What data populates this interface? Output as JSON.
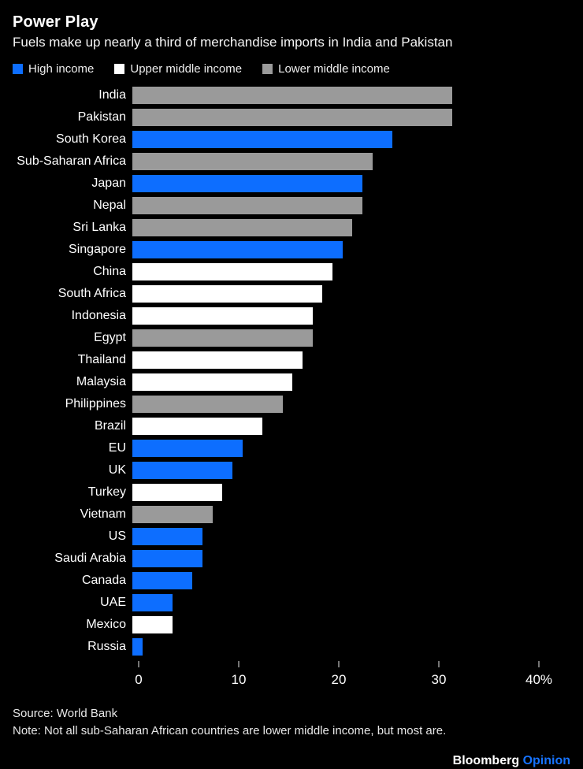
{
  "header": {
    "title": "Power Play",
    "subtitle": "Fuels make up nearly a third of merchandise imports in India and Pakistan"
  },
  "legend": [
    {
      "label": "High income",
      "color": "#0d6eff"
    },
    {
      "label": "Upper middle income",
      "color": "#ffffff"
    },
    {
      "label": "Lower middle income",
      "color": "#9a9a9a"
    }
  ],
  "colors": {
    "background": "#000000",
    "high_income": "#0d6eff",
    "upper_middle_income": "#ffffff",
    "lower_middle_income": "#9a9a9a",
    "brand_accent": "#1673ff"
  },
  "chart_data": {
    "type": "bar",
    "orientation": "horizontal",
    "unit": "%",
    "xlim": [
      0,
      40
    ],
    "x_ticks": [
      0,
      10,
      20,
      30,
      40
    ],
    "x_tick_labels": [
      "0",
      "10",
      "20",
      "30",
      "40%"
    ],
    "grid": false,
    "legend_position": "top",
    "title": "Power Play",
    "subtitle": "Fuels make up nearly a third of merchandise imports in India and Pakistan",
    "rows": [
      {
        "label": "India",
        "value": 32,
        "group": "Lower middle income"
      },
      {
        "label": "Pakistan",
        "value": 32,
        "group": "Lower middle income"
      },
      {
        "label": "South Korea",
        "value": 26,
        "group": "High income"
      },
      {
        "label": "Sub-Saharan Africa",
        "value": 24,
        "group": "Lower middle income"
      },
      {
        "label": "Japan",
        "value": 23,
        "group": "High income"
      },
      {
        "label": "Nepal",
        "value": 23,
        "group": "Lower middle income"
      },
      {
        "label": "Sri Lanka",
        "value": 22,
        "group": "Lower middle income"
      },
      {
        "label": "Singapore",
        "value": 21,
        "group": "High income"
      },
      {
        "label": "China",
        "value": 20,
        "group": "Upper middle income"
      },
      {
        "label": "South Africa",
        "value": 19,
        "group": "Upper middle income"
      },
      {
        "label": "Indonesia",
        "value": 18,
        "group": "Upper middle income"
      },
      {
        "label": "Egypt",
        "value": 18,
        "group": "Lower middle income"
      },
      {
        "label": "Thailand",
        "value": 17,
        "group": "Upper middle income"
      },
      {
        "label": "Malaysia",
        "value": 16,
        "group": "Upper middle income"
      },
      {
        "label": "Philippines",
        "value": 15,
        "group": "Lower middle income"
      },
      {
        "label": "Brazil",
        "value": 13,
        "group": "Upper middle income"
      },
      {
        "label": "EU",
        "value": 11,
        "group": "High income"
      },
      {
        "label": "UK",
        "value": 10,
        "group": "High income"
      },
      {
        "label": "Turkey",
        "value": 9,
        "group": "Upper middle income"
      },
      {
        "label": "Vietnam",
        "value": 8,
        "group": "Lower middle income"
      },
      {
        "label": "US",
        "value": 7,
        "group": "High income"
      },
      {
        "label": "Saudi Arabia",
        "value": 7,
        "group": "High income"
      },
      {
        "label": "Canada",
        "value": 6,
        "group": "High income"
      },
      {
        "label": "UAE",
        "value": 4,
        "group": "High income"
      },
      {
        "label": "Mexico",
        "value": 4,
        "group": "Upper middle income"
      },
      {
        "label": "Russia",
        "value": 1,
        "group": "High income"
      }
    ]
  },
  "footer": {
    "source": "Source: World Bank",
    "note": "Note: Not all sub-Saharan African countries are lower middle income, but most are.",
    "brand": "Bloomberg",
    "brand_suffix": "Opinion"
  }
}
